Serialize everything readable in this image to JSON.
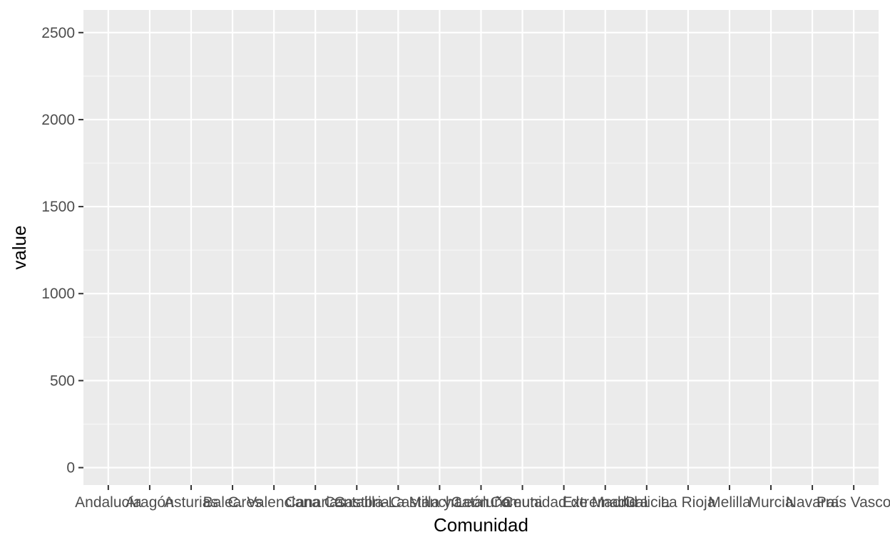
{
  "chart_data": {
    "type": "bar",
    "title": "",
    "xlabel": "Comunidad",
    "ylabel": "value",
    "ylim": [
      -100,
      2630
    ],
    "yticks": [
      0,
      500,
      1000,
      1500,
      2000,
      2500
    ],
    "categories": [
      "Andalucía",
      "Aragón",
      "Asturias",
      "Baleares",
      "C. Valenciana",
      "Canarias",
      "Cantabria",
      "Castilla-La Mancha",
      "Castilla y León",
      "Cataluña",
      "Ceuta",
      "Comunidad de Madrid",
      "Extremadura",
      "Galicia",
      "La Rioja",
      "Melilla",
      "Murcia",
      "Navarra",
      "País Vasco"
    ],
    "series": [],
    "grid": true,
    "legend": "none",
    "colors": {
      "panel": "#ebebeb",
      "grid_major": "#ffffff",
      "grid_minor": "#f7f7f7",
      "tick_text": "#4d4d4d",
      "axis_title": "#000000",
      "tick_mark": "#333333"
    }
  }
}
